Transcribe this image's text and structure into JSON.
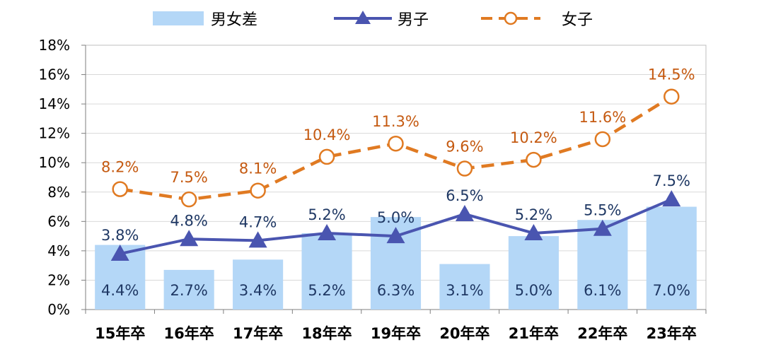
{
  "chart_data": {
    "type": "bar",
    "categories": [
      "15年卒",
      "16年卒",
      "17年卒",
      "18年卒",
      "19年卒",
      "20年卒",
      "21年卒",
      "22年卒",
      "23年卒"
    ],
    "ylim": [
      0,
      18
    ],
    "yticks": [
      "0%",
      "2%",
      "4%",
      "6%",
      "8%",
      "10%",
      "12%",
      "14%",
      "16%",
      "18%"
    ],
    "grid": true,
    "legend_position": "top",
    "series": [
      {
        "name": "男女差",
        "kind": "bar",
        "color": "#b4d7f7",
        "values": [
          4.4,
          2.7,
          3.4,
          5.2,
          6.3,
          3.1,
          5.0,
          6.1,
          7.0
        ],
        "labels": [
          "4.4%",
          "2.7%",
          "3.4%",
          "5.2%",
          "6.3%",
          "3.1%",
          "5.0%",
          "6.1%",
          "7.0%"
        ]
      },
      {
        "name": "男子",
        "kind": "line",
        "marker": "triangle",
        "color": "#4a55b0",
        "values": [
          3.8,
          4.8,
          4.7,
          5.2,
          5.0,
          6.5,
          5.2,
          5.5,
          7.5
        ],
        "labels": [
          "3.8%",
          "4.8%",
          "4.7%",
          "5.2%",
          "5.0%",
          "6.5%",
          "5.2%",
          "5.5%",
          "7.5%"
        ]
      },
      {
        "name": "女子",
        "kind": "line",
        "marker": "open-circle",
        "dashed": true,
        "color": "#e07a22",
        "values": [
          8.2,
          7.5,
          8.1,
          10.4,
          11.3,
          9.6,
          10.2,
          11.6,
          14.5
        ],
        "labels": [
          "8.2%",
          "7.5%",
          "8.1%",
          "10.4%",
          "11.3%",
          "9.6%",
          "10.2%",
          "11.6%",
          "14.5%"
        ]
      }
    ]
  }
}
